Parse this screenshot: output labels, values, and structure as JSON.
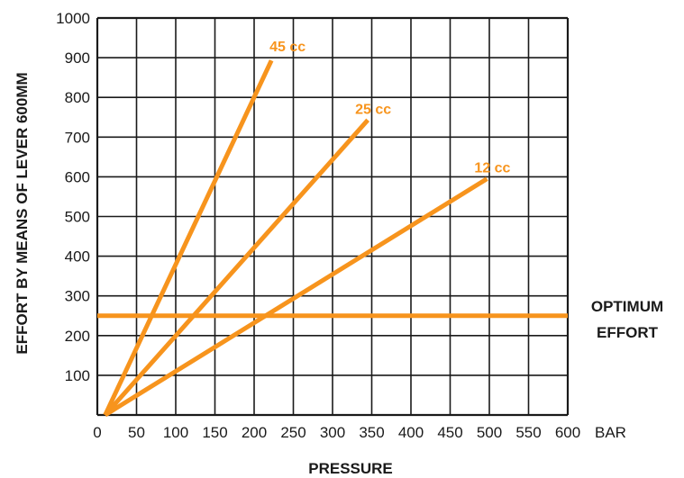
{
  "chart_data": {
    "type": "line",
    "xlabel": "PRESSURE",
    "x_unit": "BAR",
    "ylabel": "EFFORT BY MEANS OF LEVER 600MM",
    "xlim": [
      0,
      600
    ],
    "ylim": [
      0,
      1000
    ],
    "x_ticks": [
      "0",
      "50",
      "100",
      "150",
      "200",
      "250",
      "300",
      "350",
      "400",
      "450",
      "500",
      "550",
      "600"
    ],
    "y_ticks": [
      "100",
      "200",
      "300",
      "400",
      "500",
      "600",
      "700",
      "800",
      "900",
      "1000"
    ],
    "grid": true,
    "series": [
      {
        "name": "45 cc",
        "x": [
          10,
          222
        ],
        "y": [
          0,
          893
        ]
      },
      {
        "name": "25 cc",
        "x": [
          10,
          345
        ],
        "y": [
          0,
          743
        ]
      },
      {
        "name": "12 cc",
        "x": [
          10,
          497
        ],
        "y": [
          0,
          595
        ]
      }
    ],
    "reference_line": {
      "y": 250,
      "label_lines": [
        "OPTIMUM",
        "EFFORT"
      ]
    },
    "colors": {
      "series": "#f7941d",
      "grid": "#1a1a1a"
    }
  }
}
